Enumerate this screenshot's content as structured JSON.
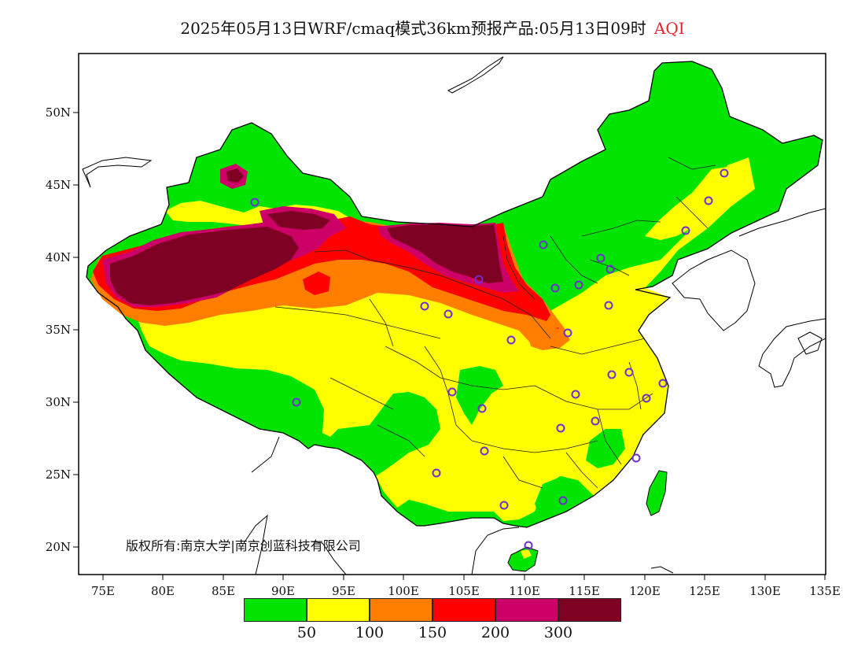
{
  "title": {
    "main": "2025年05月13日WRF/cmaq模式36km预报产品:05月13日09时",
    "variable": "AQI",
    "variable_color": "#e8232a"
  },
  "axes": {
    "lat_labels": [
      "50N",
      "45N",
      "40N",
      "35N",
      "30N",
      "25N",
      "20N"
    ],
    "lon_labels": [
      "75E",
      "80E",
      "85E",
      "90E",
      "95E",
      "100E",
      "105E",
      "110E",
      "115E",
      "120E",
      "125E",
      "130E",
      "135E"
    ]
  },
  "copyright": "版权所有:南京大学|南京创蓝科技有限公司",
  "legend": {
    "colors": [
      "#00e400",
      "#ffff00",
      "#ff7e00",
      "#ff0000",
      "#cc0066",
      "#7e0023"
    ],
    "labels": [
      "50",
      "100",
      "150",
      "200",
      "300"
    ]
  },
  "map_colors": {
    "good": "#00e400",
    "moderate": "#ffff00",
    "sensitive": "#ff7e00",
    "unhealthy": "#ff0000",
    "very_unhealthy": "#cc0066",
    "hazardous": "#7e0023",
    "station_marker": "#7030d0"
  }
}
